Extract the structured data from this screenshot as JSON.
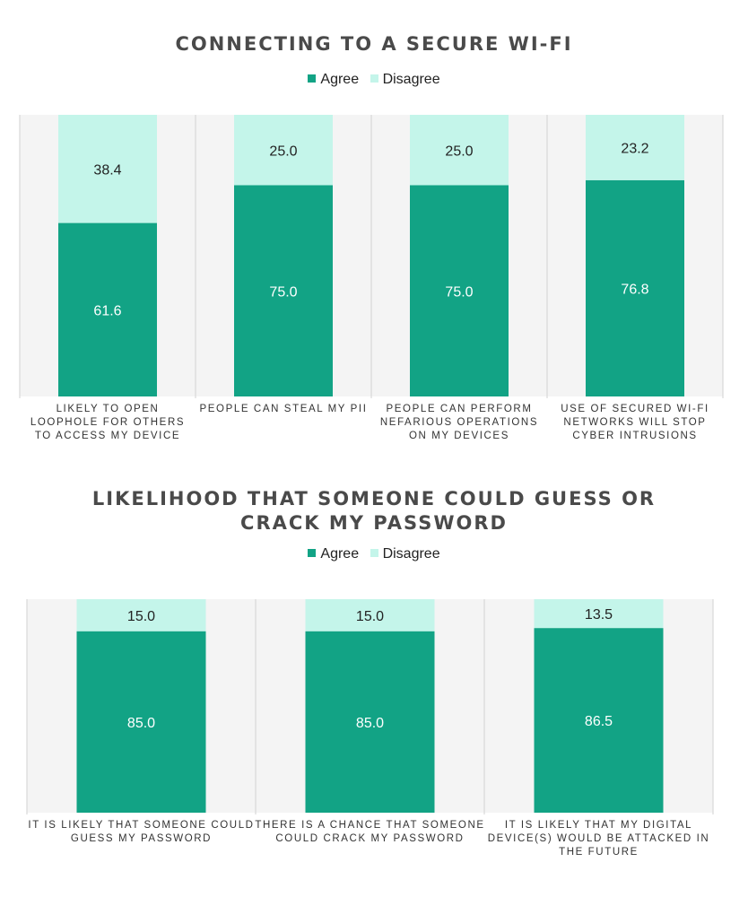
{
  "colors": {
    "agree": "#12a385",
    "disagree": "#c4f5ea",
    "panel": "#f4f4f4",
    "divider": "#d2d2d2"
  },
  "charts": [
    {
      "title_lines": [
        "CONNECTING TO A SECURE WI-FI"
      ],
      "legend": {
        "agree": "Agree",
        "disagree": "Disagree"
      }
    },
    {
      "title_lines": [
        "LIKELIHOOD THAT SOMEONE COULD GUESS OR",
        "CRACK MY PASSWORD"
      ],
      "legend": {
        "agree": "Agree",
        "disagree": "Disagree"
      }
    }
  ],
  "chart_data": [
    {
      "type": "bar",
      "stacked": true,
      "title": "CONNECTING TO A SECURE WI-FI",
      "legend_placement": "top-center",
      "ylim": [
        0,
        100
      ],
      "grid": false,
      "categories": [
        [
          "LIKELY TO OPEN",
          "LOOPHOLE FOR OTHERS",
          "TO ACCESS MY DEVICE"
        ],
        [
          "PEOPLE CAN STEAL MY PII"
        ],
        [
          "PEOPLE CAN PERFORM",
          "NEFARIOUS OPERATIONS",
          "ON MY DEVICES"
        ],
        [
          "USE OF SECURED WI-FI",
          "NETWORKS WILL STOP",
          "CYBER INTRUSIONS"
        ]
      ],
      "series": [
        {
          "name": "Agree",
          "values": [
            61.6,
            75.0,
            75.0,
            76.8
          ],
          "labels": [
            "61.6",
            "75.0",
            "75.0",
            "76.8"
          ]
        },
        {
          "name": "Disagree",
          "values": [
            38.4,
            25.0,
            25.0,
            23.2
          ],
          "labels": [
            "38.4",
            "25.0",
            "25.0",
            "23.2"
          ]
        }
      ]
    },
    {
      "type": "bar",
      "stacked": true,
      "title": "LIKELIHOOD THAT SOMEONE COULD GUESS OR CRACK MY PASSWORD",
      "legend_placement": "top-center",
      "ylim": [
        0,
        100
      ],
      "grid": false,
      "categories": [
        [
          "IT IS LIKELY THAT SOMEONE COULD",
          "GUESS MY PASSWORD"
        ],
        [
          "THERE IS A CHANCE THAT SOMEONE",
          "COULD CRACK MY PASSWORD"
        ],
        [
          "IT IS LIKELY THAT MY DIGITAL",
          "DEVICE(S) WOULD BE ATTACKED IN",
          "THE FUTURE"
        ]
      ],
      "series": [
        {
          "name": "Agree",
          "values": [
            85.0,
            85.0,
            86.5
          ],
          "labels": [
            "85.0",
            "85.0",
            "86.5"
          ]
        },
        {
          "name": "Disagree",
          "values": [
            15.0,
            15.0,
            13.5
          ],
          "labels": [
            "15.0",
            "15.0",
            "13.5"
          ]
        }
      ]
    }
  ]
}
